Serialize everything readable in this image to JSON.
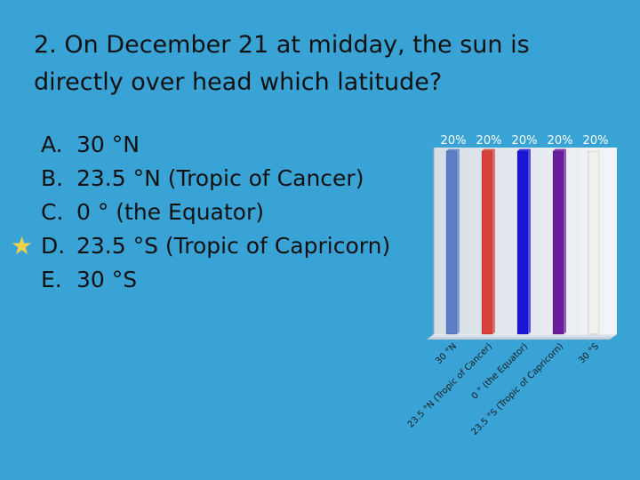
{
  "question": {
    "text": "2. On December 21 at midday, the sun is directly over head which latitude?"
  },
  "choices": [
    {
      "letter": "A.",
      "text": "30 °N",
      "correct": false
    },
    {
      "letter": "B.",
      "text": "23.5 °N (Tropic of Cancer)",
      "correct": false
    },
    {
      "letter": "C.",
      "text": "0 ° (the Equator)",
      "correct": false
    },
    {
      "letter": "D.",
      "text": "23.5 °S (Tropic of Capricorn)",
      "correct": true
    },
    {
      "letter": "E.",
      "text": "30 °S",
      "correct": false
    }
  ],
  "correct_marker": "★",
  "colors": {
    "background": "#3aa3d6",
    "star": "#f0d24a",
    "bar_colors": [
      "#5b7fc7",
      "#d8413b",
      "#1b16d6",
      "#6a1d9c",
      "#f2f2ec"
    ],
    "value_label": "#ffffff",
    "category_label": "#1a1a1a"
  },
  "chart_data": {
    "type": "bar",
    "categories": [
      "30 °N",
      "23.5 °N (Tropic of Cancer)",
      "0 ° (the Equator)",
      "23.5 °S (Tropic of Capricorn)",
      "30 °S"
    ],
    "values": [
      20,
      20,
      20,
      20,
      20
    ],
    "value_labels": [
      "20%",
      "20%",
      "20%",
      "20%",
      "20%"
    ],
    "title": "",
    "xlabel": "",
    "ylabel": "",
    "ylim": [
      0,
      20
    ],
    "grid": false,
    "legend": "none"
  }
}
